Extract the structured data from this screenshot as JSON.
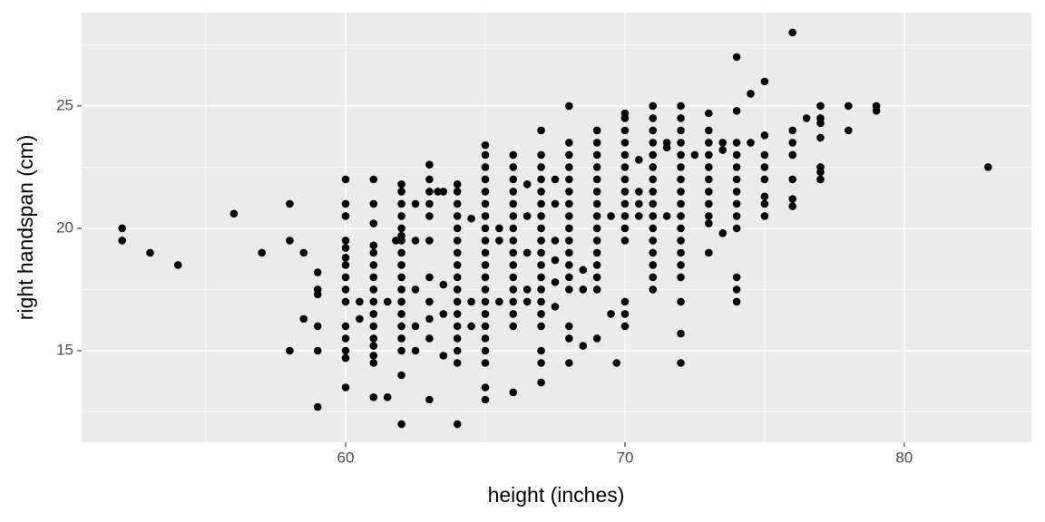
{
  "chart_data": {
    "type": "scatter",
    "x_label": "height (inches)",
    "y_label": "right handspan (cm)",
    "color": "#000000",
    "grid": true,
    "background": "#EBEBEB",
    "xlim": [
      50.55,
      84.55
    ],
    "xticks": [
      60,
      70,
      80
    ],
    "x_minor_grid": [
      55,
      65,
      75
    ],
    "ylim": [
      11.26,
      28.81
    ],
    "yticks": [
      15,
      20,
      25
    ],
    "y_minor_grid": [
      12.5,
      17.5,
      22.5,
      27.5
    ],
    "x": [
      52,
      52,
      53,
      54,
      56,
      57,
      58,
      58,
      58,
      58.5,
      58.5,
      59,
      59,
      59,
      59,
      59,
      59,
      60,
      60,
      60,
      60,
      60,
      60,
      60,
      60,
      60,
      60,
      60,
      60,
      60,
      60,
      60,
      60.5,
      60.5,
      61,
      61,
      61,
      61,
      61,
      61,
      61,
      61,
      61,
      61,
      61,
      61,
      61,
      61,
      61,
      61,
      61.5,
      61.5,
      61.8,
      62,
      62,
      62,
      62,
      62,
      62,
      62,
      62,
      62,
      62,
      62,
      62,
      62,
      62,
      62,
      62,
      62,
      62,
      62.5,
      62.5,
      62.5,
      62.5,
      62.5,
      63,
      63,
      63,
      63,
      63,
      63,
      63,
      63,
      63,
      63,
      63,
      63.3,
      63.5,
      63.5,
      63.5,
      63.5,
      64,
      64,
      64,
      64,
      64,
      64,
      64,
      64,
      64,
      64,
      64,
      64,
      64,
      64,
      64,
      64,
      64,
      64.5,
      64.5,
      64.5,
      65,
      65,
      65,
      65,
      65,
      65,
      65,
      65,
      65,
      65,
      65,
      65,
      65,
      65,
      65,
      65,
      65,
      65,
      65,
      65,
      65,
      65.5,
      65.5,
      65.5,
      66,
      66,
      66,
      66,
      66,
      66,
      66,
      66,
      66,
      66,
      66,
      66,
      66,
      66,
      66,
      66,
      66.5,
      66.5,
      66.5,
      66.5,
      66.5,
      67,
      67,
      67,
      67,
      67,
      67,
      67,
      67,
      67,
      67,
      67,
      67,
      67,
      67,
      67,
      67,
      67,
      67,
      67,
      67.5,
      67.5,
      67.5,
      67.5,
      67.5,
      67.5,
      68,
      68,
      68,
      68,
      68,
      68,
      68,
      68,
      68,
      68,
      68,
      68,
      68,
      68,
      68,
      68,
      68,
      68.5,
      68.5,
      68.5,
      69,
      69,
      69,
      69,
      69,
      69,
      69,
      69,
      69,
      69,
      69,
      69,
      69,
      69,
      69,
      69.5,
      69.5,
      69.7,
      70,
      70,
      70,
      70,
      70,
      70,
      70,
      70,
      70,
      70,
      70,
      70,
      70,
      70,
      70,
      70.5,
      70.5,
      70.5,
      70.5,
      71,
      71,
      71,
      71,
      71,
      71,
      71,
      71,
      71,
      71,
      71,
      71,
      71,
      71,
      71,
      71,
      71.5,
      71.5,
      71.5,
      72,
      72,
      72,
      72,
      72,
      72,
      72,
      72,
      72,
      72,
      72,
      72,
      72,
      72,
      72,
      72,
      72,
      72,
      72.5,
      73,
      73,
      73,
      73,
      73,
      73,
      73,
      73,
      73,
      73,
      73,
      73.5,
      73.5,
      73.5,
      74,
      74,
      74,
      74,
      74,
      74,
      74,
      74,
      74,
      74,
      74,
      74,
      74,
      74.5,
      74.5,
      75,
      75,
      75,
      75,
      75,
      75,
      75,
      75,
      76,
      76,
      76,
      76,
      76,
      76,
      76,
      76.5,
      77,
      77,
      77,
      77,
      77,
      77,
      77,
      78,
      78,
      79,
      79,
      83
    ],
    "values": [
      20,
      19.5,
      19,
      18.5,
      20.6,
      19,
      21,
      19.5,
      15,
      16.3,
      19,
      18.2,
      17.5,
      17.3,
      16,
      15,
      12.7,
      22,
      21,
      20.5,
      19.5,
      19.2,
      18.8,
      18.5,
      18,
      17.5,
      17,
      16,
      15.5,
      15,
      14.7,
      13.5,
      17,
      16.3,
      22,
      21,
      20.2,
      19.3,
      19,
      18.5,
      18,
      17.5,
      17,
      16.5,
      16,
      15.5,
      15.2,
      14.8,
      14.5,
      13.1,
      17,
      13.1,
      19.5,
      21.8,
      21.5,
      21,
      20.5,
      20,
      19.7,
      19.5,
      19,
      18.5,
      18,
      17.5,
      17,
      16.5,
      16,
      15.5,
      15,
      14,
      12,
      21,
      19.5,
      17.5,
      16,
      15,
      22.6,
      22,
      21.5,
      21,
      20.5,
      19.5,
      18,
      17,
      16.3,
      15.5,
      13,
      21.5,
      21.5,
      17.7,
      16.5,
      14.8,
      21.8,
      21.5,
      21,
      20.5,
      20,
      19.5,
      19,
      18.5,
      18,
      17.5,
      17,
      16.5,
      16,
      15.5,
      15,
      14.5,
      12,
      20.4,
      16,
      17,
      23.4,
      23,
      22.5,
      22,
      21.5,
      21,
      20.5,
      20,
      19.5,
      19,
      18.5,
      18,
      17.5,
      17,
      16.5,
      16,
      15.5,
      15,
      14.5,
      13.5,
      13,
      20,
      19.5,
      17,
      23,
      22.5,
      22,
      21.5,
      21,
      20.5,
      20,
      19.5,
      19,
      18.5,
      18,
      17.5,
      17,
      16.5,
      16,
      13.3,
      21.8,
      20.5,
      19,
      17.5,
      17,
      24,
      23,
      22.5,
      22,
      21.5,
      21,
      20.5,
      20,
      19.5,
      19,
      18.5,
      18,
      17.5,
      17,
      16.5,
      16,
      15,
      14.5,
      13.7,
      22,
      21,
      19.5,
      18.7,
      17.8,
      16.8,
      25,
      23.5,
      23,
      22.5,
      22,
      21.5,
      21,
      20.5,
      20,
      19.5,
      19,
      18.5,
      18,
      17.5,
      16,
      15.5,
      14.5,
      18.3,
      17.5,
      15.2,
      24,
      23.5,
      23,
      22.5,
      22,
      21.5,
      21,
      20.5,
      20,
      19.5,
      19,
      18.5,
      18,
      17.5,
      15.5,
      20.5,
      16.5,
      14.5,
      24.7,
      24.5,
      24,
      23.5,
      23,
      22.5,
      22,
      21.5,
      21,
      20.5,
      20,
      19.5,
      17,
      16.5,
      16,
      22.8,
      21.5,
      21,
      20.5,
      25,
      24.5,
      24,
      23.5,
      23,
      22.5,
      22,
      21.5,
      21,
      20.5,
      20,
      19.5,
      19,
      18.5,
      18,
      17.5,
      23.5,
      23.3,
      20.5,
      25,
      24.5,
      24,
      23.5,
      23,
      22.5,
      22,
      21.5,
      21,
      20.5,
      20,
      19.5,
      19,
      18.5,
      18,
      17,
      15.7,
      14.5,
      23,
      24.7,
      24,
      23.5,
      23,
      22.5,
      22,
      21.5,
      21,
      20.5,
      20.2,
      19,
      23.5,
      23.2,
      19.8,
      27,
      24.8,
      23.5,
      23,
      22.5,
      22,
      21.5,
      21,
      20.5,
      20,
      18,
      17.5,
      17,
      25.5,
      23.5,
      26,
      23.8,
      23,
      22.5,
      22,
      21.3,
      21,
      20.5,
      28,
      24,
      23.5,
      23,
      22,
      21.2,
      20.9,
      24.5,
      25,
      24.5,
      24.3,
      23.7,
      22.5,
      22.3,
      22,
      25,
      24,
      25,
      24.8,
      22.5
    ]
  }
}
